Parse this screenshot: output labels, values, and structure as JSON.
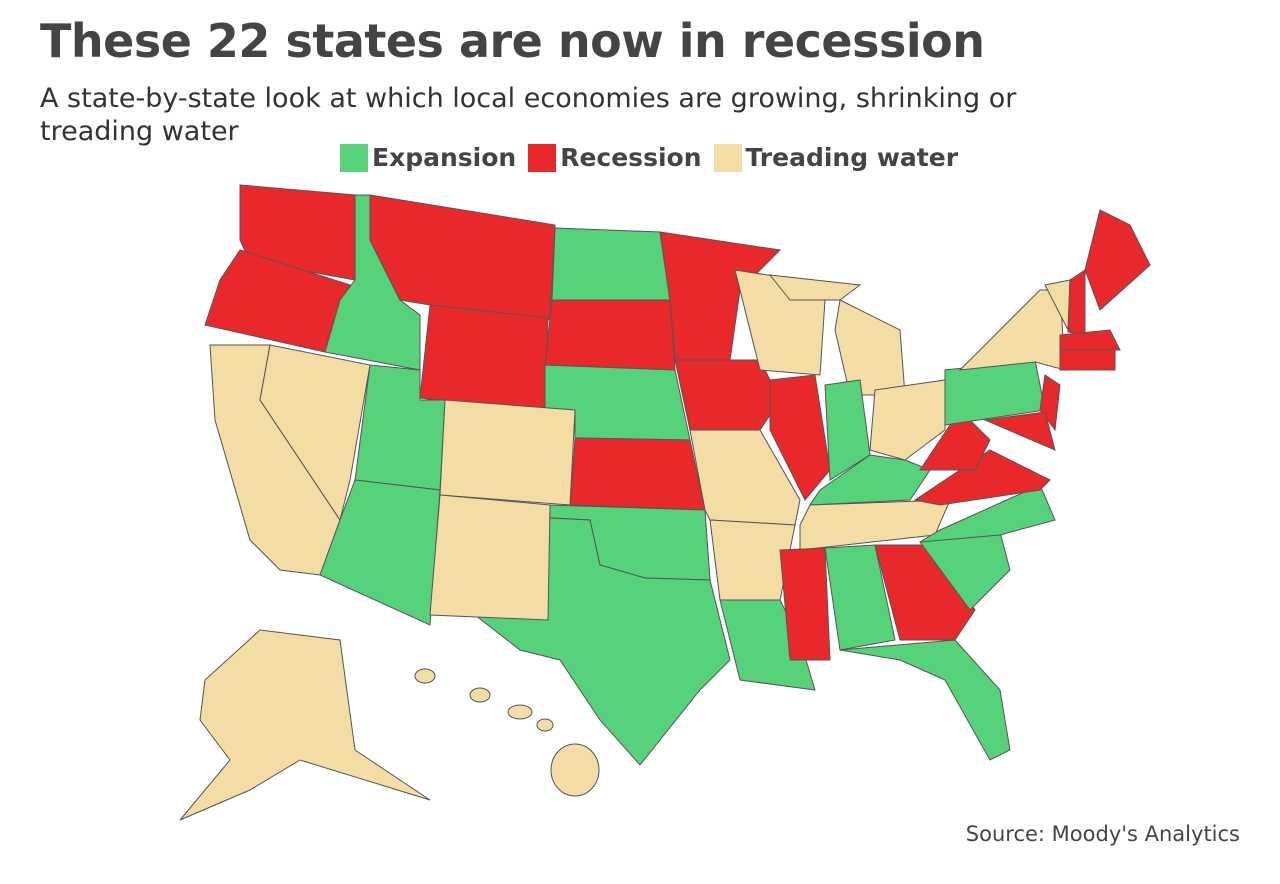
{
  "header": {
    "title": "These 22 states are now in recession",
    "subtitle": "A state-by-state look at which local economies are growing, shrinking or treading water"
  },
  "legend": [
    {
      "label": "Expansion",
      "color": "#55d27a"
    },
    {
      "label": "Recession",
      "color": "#e8282b"
    },
    {
      "label": "Treading water",
      "color": "#f4dca5"
    }
  ],
  "source": "Source: Moody's Analytics"
}
